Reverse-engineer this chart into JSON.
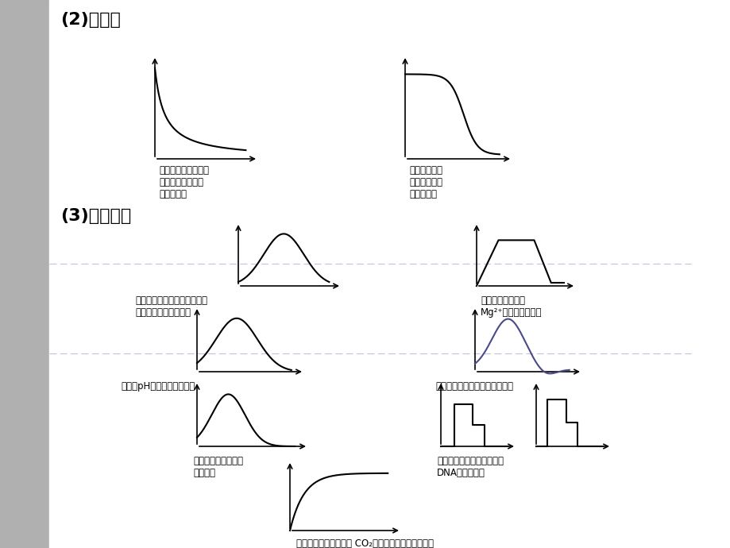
{
  "bg_color": "#ede9e3",
  "left_panel_color": "#a8a8a8",
  "title1": "(2)降曲线",
  "title2": "(3)先升后降",
  "label1": "受精卵卵裂过程中，\n每个细胞体积与数\n目间的关系",
  "label2": "种子萍发时其\n干重随其萍发\n时间的变化",
  "label3": "运动员跑步过程中及结束后，\n血液中乳酸含量的变化",
  "label4": "不同年龄的叶片中\nMg²⁺和叶绿素的含量",
  "label5": "温度和pH値对醂活性的影响",
  "label6": "生长素的生理作用与其浓度关系",
  "label7": "物种多样性随南北纬\n度的变化",
  "label8": "有丝分裂和减数分裂过程中\nDNA的变化曲线",
  "label9": "在光照充足的情况下， CO₂供给量对光合速率的影响"
}
